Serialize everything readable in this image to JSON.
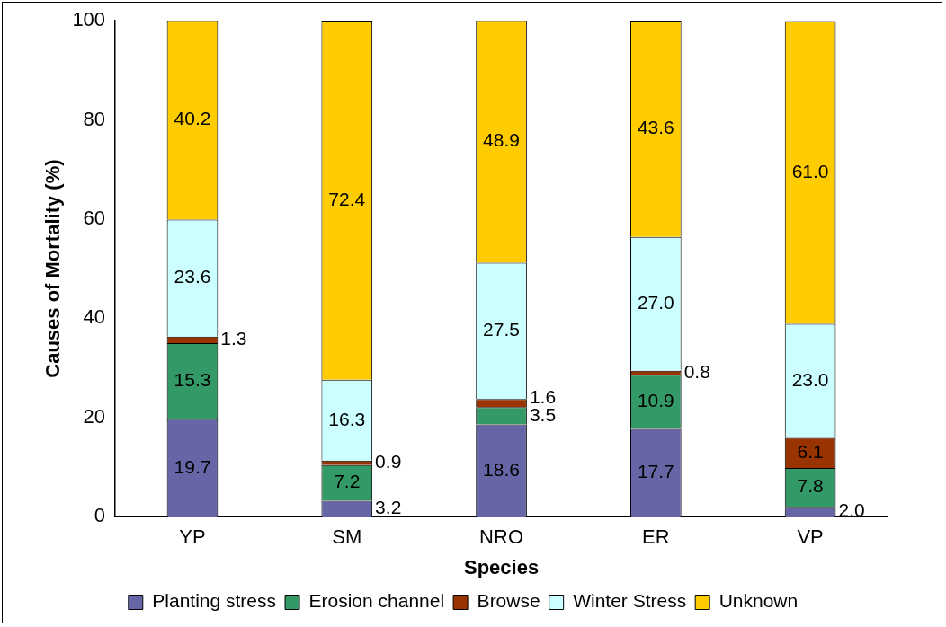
{
  "chart_data": {
    "type": "bar",
    "stacked": true,
    "xlabel": "Species",
    "ylabel": "Causes of Mortality (%)",
    "categories": [
      "YP",
      "SM",
      "NRO",
      "ER",
      "VP"
    ],
    "series": [
      {
        "name": "Planting stress",
        "color": "#6666a6",
        "values": [
          19.7,
          3.2,
          18.6,
          17.7,
          2.0
        ],
        "value_labels": [
          "19.7",
          "3.2",
          "18.6",
          "17.7",
          "2.0"
        ]
      },
      {
        "name": "Erosion channel",
        "color": "#339966",
        "values": [
          15.3,
          7.2,
          3.5,
          10.9,
          7.8
        ],
        "value_labels": [
          "15.3",
          "7.2",
          "3.5",
          "10.9",
          "7.8"
        ]
      },
      {
        "name": "Browse",
        "color": "#993300",
        "values": [
          1.3,
          0.9,
          1.6,
          0.8,
          6.1
        ],
        "value_labels": [
          "1.3",
          "0.9",
          "1.6",
          "0.8",
          "6.1"
        ]
      },
      {
        "name": "Winter Stress",
        "color": "#ccffff",
        "values": [
          23.6,
          16.3,
          27.5,
          27.0,
          23.0
        ],
        "value_labels": [
          "23.6",
          "16.3",
          "27.5",
          "27.0",
          "23.0"
        ]
      },
      {
        "name": "Unknown",
        "color": "#ffcc00",
        "values": [
          40.2,
          72.4,
          48.9,
          43.6,
          61.0
        ],
        "value_labels": [
          "40.2",
          "72.4",
          "48.9",
          "43.6",
          "61.0"
        ]
      }
    ],
    "ylim": [
      0,
      100
    ],
    "yticks": [
      0,
      20,
      40,
      60,
      80,
      100
    ],
    "grid": false,
    "legend": "bottom"
  }
}
